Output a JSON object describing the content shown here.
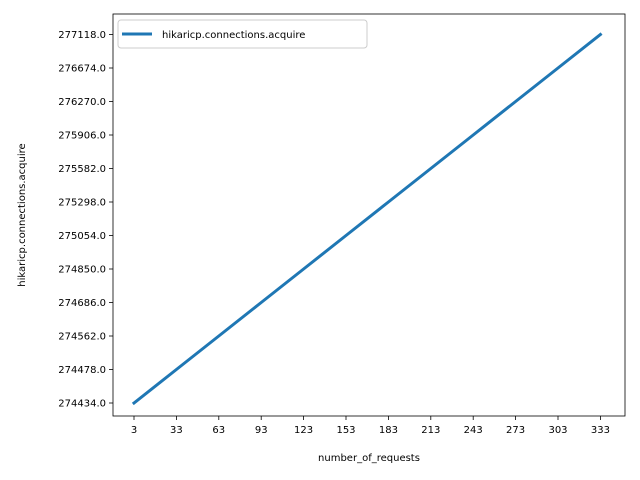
{
  "chart_data": {
    "type": "line",
    "xlabel": "number_of_requests",
    "ylabel": "hikaricp.connections.acquire",
    "x_ticks": [
      "3",
      "33",
      "63",
      "93",
      "123",
      "153",
      "183",
      "213",
      "243",
      "273",
      "303",
      "333"
    ],
    "y_ticks": [
      "274434.0",
      "274478.0",
      "274562.0",
      "274686.0",
      "274850.0",
      "275054.0",
      "275298.0",
      "275582.0",
      "275906.0",
      "276270.0",
      "276674.0",
      "277118.0"
    ],
    "series": [
      {
        "name": "hikaricp.connections.acquire",
        "color": "#1f77b4",
        "x": [
          "3",
          "33",
          "63",
          "93",
          "123",
          "153",
          "183",
          "213",
          "243",
          "273",
          "303",
          "333"
        ],
        "y": [
          274434.0,
          274478.0,
          274562.0,
          274686.0,
          274850.0,
          275054.0,
          275298.0,
          275582.0,
          275906.0,
          276270.0,
          276674.0,
          277118.0
        ]
      }
    ],
    "legend_position": "upper left",
    "grid": false
  }
}
